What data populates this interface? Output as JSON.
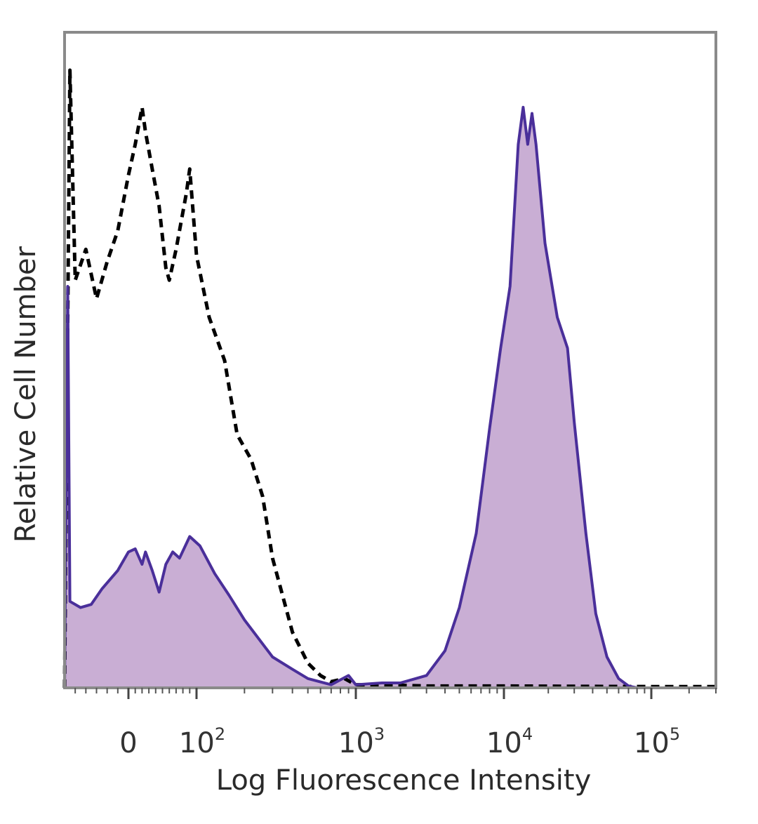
{
  "chart_data": {
    "type": "area",
    "title": "",
    "xlabel": "Log Fluorescence Intensity",
    "ylabel": "Relative Cell Number",
    "x_scale": "biexponential",
    "xlim": [
      -60,
      200000
    ],
    "ylim": [
      0,
      100
    ],
    "grid": false,
    "legend": "none",
    "x_ticks": [
      {
        "base": "0",
        "exp": "",
        "value": 0
      },
      {
        "base": "10",
        "exp": "2",
        "value": 100
      },
      {
        "base": "10",
        "exp": "3",
        "value": 1000
      },
      {
        "base": "10",
        "exp": "4",
        "value": 10000
      },
      {
        "base": "10",
        "exp": "5",
        "value": 100000
      }
    ],
    "series": [
      {
        "style": "dashed",
        "color": "#000000",
        "fill": "none",
        "points": [
          [
            -60,
            0
          ],
          [
            -55,
            100
          ],
          [
            -50,
            66
          ],
          [
            -40,
            71
          ],
          [
            -30,
            63
          ],
          [
            -20,
            69
          ],
          [
            -10,
            74
          ],
          [
            0,
            83
          ],
          [
            10,
            88
          ],
          [
            20,
            94
          ],
          [
            25,
            90
          ],
          [
            35,
            84
          ],
          [
            45,
            78
          ],
          [
            55,
            68
          ],
          [
            60,
            66
          ],
          [
            70,
            71
          ],
          [
            85,
            80
          ],
          [
            90,
            84
          ],
          [
            100,
            70
          ],
          [
            120,
            60
          ],
          [
            150,
            53
          ],
          [
            180,
            41
          ],
          [
            220,
            37
          ],
          [
            260,
            31
          ],
          [
            300,
            21
          ],
          [
            400,
            9
          ],
          [
            500,
            4
          ],
          [
            600,
            2
          ],
          [
            700,
            1
          ],
          [
            850,
            1.5
          ],
          [
            1000,
            0.5
          ],
          [
            1500,
            0.5
          ],
          [
            3000,
            0.3
          ],
          [
            10000,
            0.3
          ],
          [
            100000,
            0.2
          ],
          [
            200000,
            0.2
          ]
        ]
      },
      {
        "style": "solid",
        "color": "#4a2f9a",
        "fill": "#c9aed4",
        "points": [
          [
            -60,
            0
          ],
          [
            -57,
            65
          ],
          [
            -55,
            14
          ],
          [
            -45,
            13
          ],
          [
            -35,
            13.5
          ],
          [
            -25,
            16
          ],
          [
            -10,
            19
          ],
          [
            0,
            22
          ],
          [
            10,
            22.5
          ],
          [
            20,
            20
          ],
          [
            25,
            22
          ],
          [
            35,
            19
          ],
          [
            45,
            15.5
          ],
          [
            55,
            20
          ],
          [
            65,
            22
          ],
          [
            75,
            21
          ],
          [
            90,
            24.5
          ],
          [
            105,
            23
          ],
          [
            130,
            18.5
          ],
          [
            160,
            15
          ],
          [
            200,
            11
          ],
          [
            300,
            5
          ],
          [
            400,
            3
          ],
          [
            500,
            1.5
          ],
          [
            700,
            0.5
          ],
          [
            900,
            2
          ],
          [
            1000,
            0.5
          ],
          [
            1500,
            0.8
          ],
          [
            2000,
            0.8
          ],
          [
            3000,
            2
          ],
          [
            4000,
            6
          ],
          [
            5000,
            13
          ],
          [
            6500,
            25
          ],
          [
            8000,
            42
          ],
          [
            9500,
            55
          ],
          [
            11000,
            65
          ],
          [
            12500,
            88
          ],
          [
            13500,
            94
          ],
          [
            14500,
            88
          ],
          [
            15500,
            93
          ],
          [
            16500,
            88
          ],
          [
            19000,
            72
          ],
          [
            23000,
            60
          ],
          [
            27000,
            55
          ],
          [
            30000,
            43
          ],
          [
            36000,
            25
          ],
          [
            42000,
            12
          ],
          [
            50000,
            5
          ],
          [
            60000,
            1.5
          ],
          [
            70000,
            0.3
          ],
          [
            80000,
            0
          ],
          [
            200000,
            0
          ]
        ]
      }
    ]
  }
}
